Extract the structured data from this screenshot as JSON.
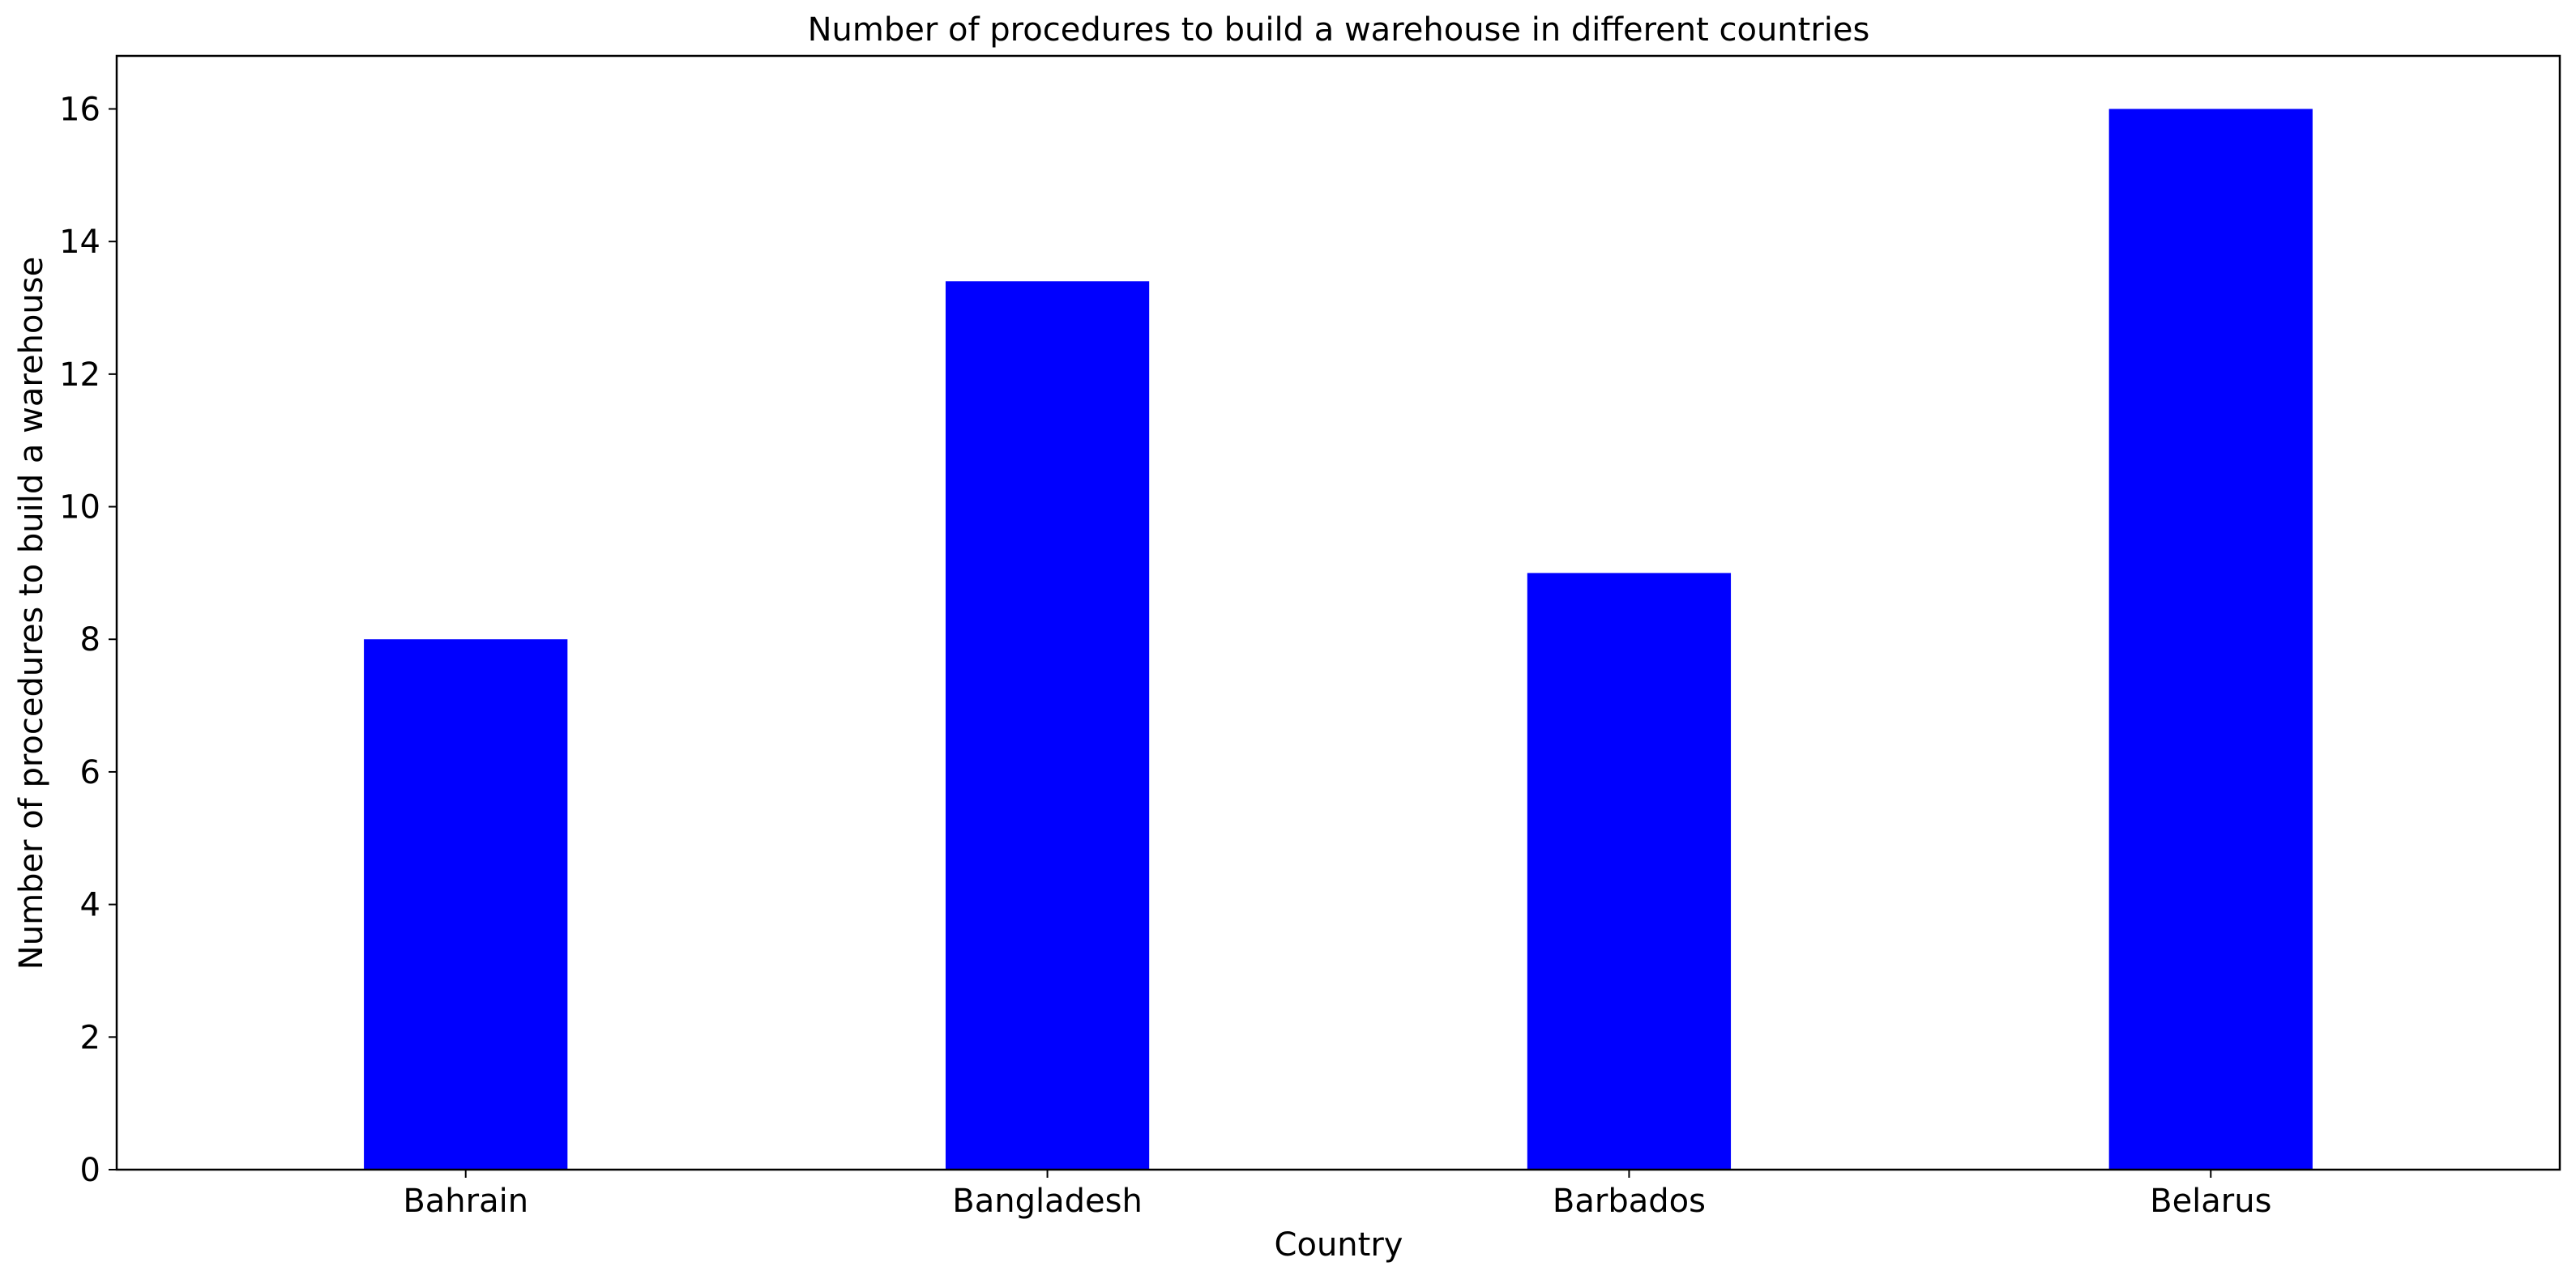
{
  "chart_data": {
    "type": "bar",
    "title": "Number of procedures to build a warehouse in different countries",
    "xlabel": "Country",
    "ylabel": "Number of procedures to build a warehouse",
    "categories": [
      "Bahrain",
      "Bangladesh",
      "Barbados",
      "Belarus"
    ],
    "values": [
      8,
      13.4,
      9,
      16
    ],
    "ylim": [
      0,
      16.8
    ],
    "yticks": [
      0,
      2,
      4,
      6,
      8,
      10,
      12,
      14,
      16
    ],
    "grid": false,
    "legend": "none",
    "bar_color": "#0000ff"
  }
}
